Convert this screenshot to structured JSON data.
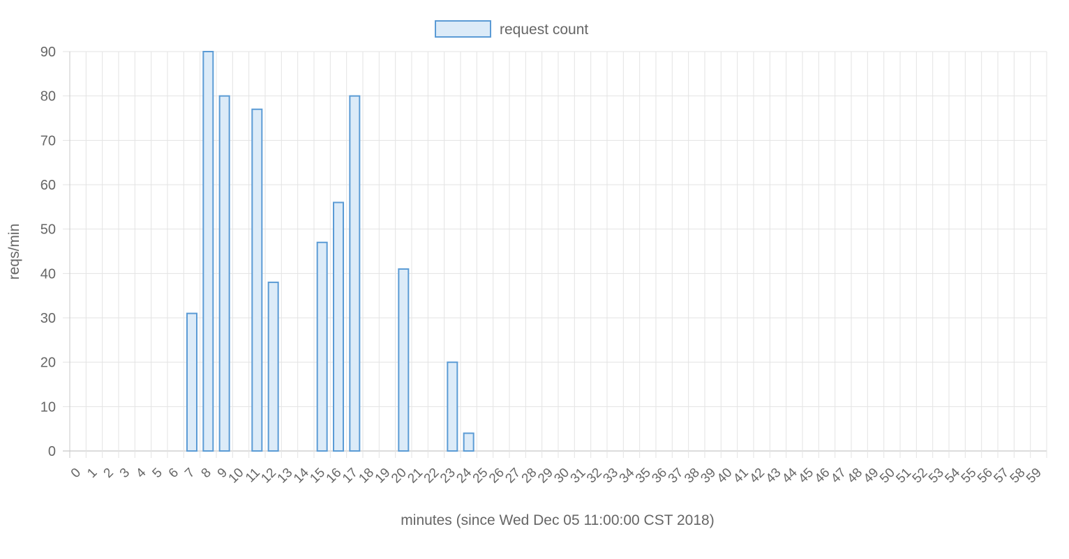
{
  "chart_data": {
    "type": "bar",
    "title": "",
    "xlabel": "minutes (since Wed Dec 05 11:00:00 CST 2018)",
    "ylabel": "reqs/min",
    "ylim": [
      0,
      90
    ],
    "yticks": [
      0,
      10,
      20,
      30,
      40,
      50,
      60,
      70,
      80,
      90
    ],
    "grid": true,
    "legend_position": "top-center",
    "categories": [
      "0",
      "1",
      "2",
      "3",
      "4",
      "5",
      "6",
      "7",
      "8",
      "9",
      "10",
      "11",
      "12",
      "13",
      "14",
      "15",
      "16",
      "17",
      "18",
      "19",
      "20",
      "21",
      "22",
      "23",
      "24",
      "25",
      "26",
      "27",
      "28",
      "29",
      "30",
      "31",
      "32",
      "33",
      "34",
      "35",
      "36",
      "37",
      "38",
      "39",
      "40",
      "41",
      "42",
      "43",
      "44",
      "45",
      "46",
      "47",
      "48",
      "49",
      "50",
      "51",
      "52",
      "53",
      "54",
      "55",
      "56",
      "57",
      "58",
      "59"
    ],
    "series": [
      {
        "name": "request count",
        "fill": "#dcebf8",
        "stroke": "#5b9bd5",
        "values": [
          0,
          0,
          0,
          0,
          0,
          0,
          0,
          31,
          90,
          80,
          0,
          77,
          38,
          0,
          0,
          47,
          56,
          80,
          0,
          0,
          41,
          0,
          0,
          20,
          4,
          0,
          0,
          0,
          0,
          0,
          0,
          0,
          0,
          0,
          0,
          0,
          0,
          0,
          0,
          0,
          0,
          0,
          0,
          0,
          0,
          0,
          0,
          0,
          0,
          0,
          0,
          0,
          0,
          0,
          0,
          0,
          0,
          0,
          0,
          0
        ]
      }
    ]
  }
}
